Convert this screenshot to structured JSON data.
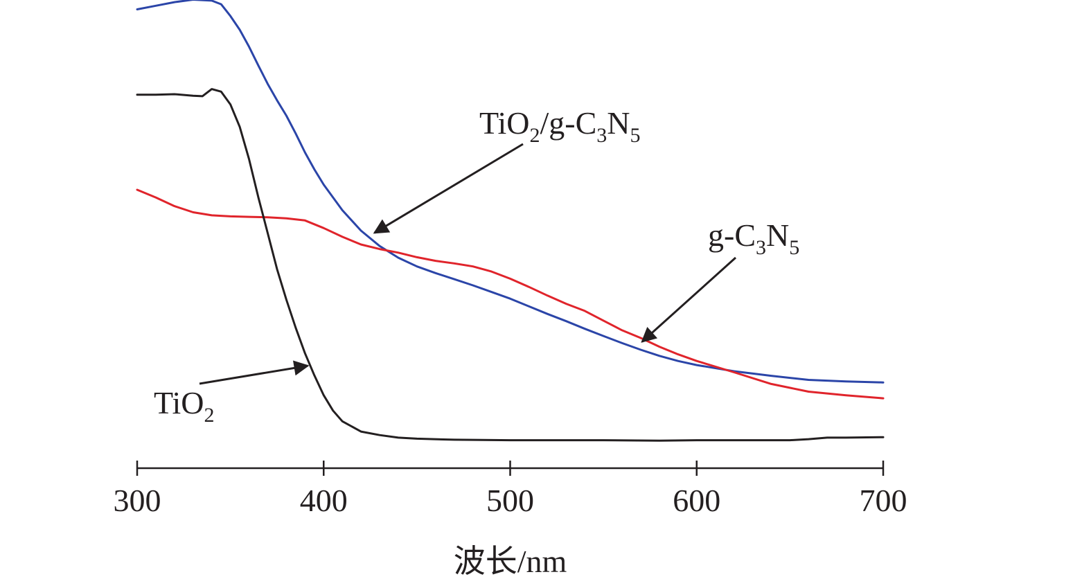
{
  "chart_data": {
    "type": "line",
    "title": "",
    "xlabel": "波长/nm",
    "ylabel": "",
    "xlim": [
      300,
      700
    ],
    "xticks": [
      300,
      400,
      500,
      600,
      700
    ],
    "y_axis_shown": false,
    "grid": false,
    "legend": "none",
    "series": [
      {
        "name": "TiO2/g-C3N5",
        "color": "#2b45a8",
        "x": [
          300,
          310,
          320,
          330,
          340,
          345,
          350,
          355,
          360,
          365,
          370,
          375,
          380,
          385,
          390,
          395,
          400,
          410,
          420,
          430,
          440,
          450,
          460,
          470,
          480,
          490,
          500,
          510,
          520,
          530,
          540,
          550,
          560,
          570,
          580,
          590,
          600,
          620,
          640,
          660,
          680,
          700
        ],
        "y": [
          0.998,
          1.005,
          1.012,
          1.017,
          1.015,
          1.008,
          0.985,
          0.958,
          0.925,
          0.888,
          0.852,
          0.82,
          0.79,
          0.755,
          0.718,
          0.685,
          0.655,
          0.605,
          0.565,
          0.535,
          0.512,
          0.495,
          0.482,
          0.47,
          0.458,
          0.445,
          0.432,
          0.417,
          0.402,
          0.388,
          0.373,
          0.359,
          0.345,
          0.332,
          0.32,
          0.31,
          0.302,
          0.29,
          0.281,
          0.273,
          0.27,
          0.268
        ]
      },
      {
        "name": "g-C3N5",
        "color": "#e0242b",
        "x": [
          300,
          310,
          320,
          330,
          340,
          350,
          360,
          370,
          380,
          390,
          400,
          410,
          420,
          430,
          440,
          450,
          460,
          470,
          480,
          490,
          500,
          510,
          520,
          530,
          540,
          550,
          560,
          570,
          580,
          590,
          600,
          620,
          640,
          660,
          680,
          700
        ],
        "y": [
          0.645,
          0.63,
          0.613,
          0.601,
          0.595,
          0.593,
          0.592,
          0.591,
          0.589,
          0.585,
          0.57,
          0.553,
          0.538,
          0.529,
          0.522,
          0.513,
          0.506,
          0.501,
          0.495,
          0.485,
          0.471,
          0.455,
          0.438,
          0.422,
          0.408,
          0.389,
          0.37,
          0.355,
          0.338,
          0.323,
          0.31,
          0.288,
          0.265,
          0.25,
          0.243,
          0.237
        ]
      },
      {
        "name": "TiO2",
        "color": "#231f20",
        "x": [
          300,
          310,
          320,
          330,
          335,
          340,
          345,
          350,
          355,
          360,
          365,
          370,
          375,
          380,
          385,
          390,
          395,
          400,
          405,
          410,
          420,
          430,
          440,
          450,
          470,
          500,
          550,
          580,
          600,
          650,
          660,
          670,
          680,
          700
        ],
        "y": [
          0.831,
          0.831,
          0.832,
          0.829,
          0.828,
          0.842,
          0.837,
          0.812,
          0.768,
          0.705,
          0.63,
          0.56,
          0.49,
          0.43,
          0.375,
          0.325,
          0.282,
          0.243,
          0.213,
          0.192,
          0.172,
          0.165,
          0.16,
          0.158,
          0.156,
          0.155,
          0.155,
          0.154,
          0.155,
          0.155,
          0.157,
          0.16,
          0.16,
          0.161
        ]
      }
    ],
    "annotations": [
      {
        "text": "TiO",
        "sub1": "2",
        "mid": "/g-C",
        "sub2": "3",
        "mid2": "N",
        "sub3": "5",
        "points_to_series": "TiO2/g-C3N5",
        "arrow_tip": [
          425,
          0.558
        ]
      },
      {
        "text": "g-C",
        "sub1": "3",
        "mid": "N",
        "sub2": "5",
        "points_to_series": "g-C3N5",
        "arrow_tip": [
          570,
          0.345
        ]
      },
      {
        "text": "TiO",
        "sub1": "2",
        "points_to_series": "TiO2",
        "arrow_tip": [
          390,
          0.325
        ]
      }
    ]
  }
}
